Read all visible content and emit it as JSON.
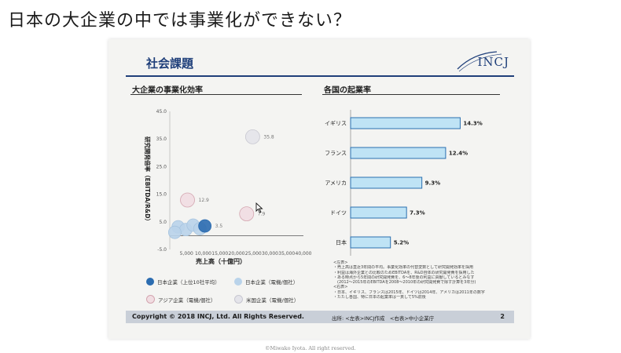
{
  "page": {
    "title": "日本の大企業の中では事業化ができない？",
    "watermark": "©Miwako Iyota. All right reserved."
  },
  "slide": {
    "header_title": "社会課題",
    "logo": "INCJ",
    "left_title": "大企業の事業化効率",
    "right_title": "各国の起業率",
    "footer_copyright": "Copyright © 2018 INCJ, Ltd. All Rights Reserved.",
    "footer_source": "出所: <左表>INCJ作成　<右表>中小企業庁",
    "page_number": "2",
    "legend": [
      {
        "label": "日本企業（上位10社平均）",
        "color": "#2b6cb0"
      },
      {
        "label": "日本企業（電機/個社）",
        "color": "#b9d3ea"
      },
      {
        "label": "アジア企業（電機/個社）",
        "color": "#e9c4cc"
      },
      {
        "label": "米国企業（電機/個社）",
        "color": "#d4d4dc"
      }
    ],
    "notes": [
      "<左表>",
      "・売上高は直近3年間の平均。事業化効率の代替変数として研究開発効率を採用",
      "・利益は海外企業との比較のためEBITDAを、R&D自体の研究開発費を採用した",
      "・ある時点から5年間の研究開発費を、6～8年後の利益に貢献しているとみなす",
      "　(2012～2015年のEBITDAを2008～2010年の研究開発費で除す計算を3年分)",
      "<右表>",
      "・日本、イギリス、フランスは2015年、ドイツは2014年、アメリカは2011年の数字",
      "・たたし各国、特に日本の起業率は一貫して5%前後"
    ]
  },
  "chart_data": [
    {
      "type": "scatter",
      "title": "大企業の事業化効率",
      "xlabel": "売上高（十億円）",
      "ylabel": "研究開発倍率（EBITDA/R&D）",
      "xlim": [
        0,
        40000
      ],
      "ylim": [
        -5,
        45
      ],
      "xticks": [
        "5,000",
        "10,000",
        "15,000",
        "20,000",
        "25,000",
        "30,000",
        "35,000",
        "40,000"
      ],
      "yticks": [
        "45.0",
        "35.0",
        "25.0",
        "15.0",
        "5.0",
        "-5.0"
      ],
      "grid": false,
      "points": [
        {
          "series": "日本企業（上位10社平均）",
          "x": 10500,
          "y": 3.5,
          "label": "3.5"
        },
        {
          "series": "米国企業（電機/個社）",
          "x": 24800,
          "y": 35.8,
          "label": "35.8"
        },
        {
          "series": "アジア企業（電機/個社）",
          "x": 5300,
          "y": 12.9,
          "label": "12.9"
        },
        {
          "series": "アジア企業（電機/個社）",
          "x": 23000,
          "y": 7.9,
          "label": "7.9"
        },
        {
          "series": "日本企業（電機/個社）",
          "x": 2500,
          "y": 3.2,
          "label": ""
        },
        {
          "series": "日本企業（電機/個社）",
          "x": 4800,
          "y": 2.2,
          "label": ""
        },
        {
          "series": "日本企業（電機/個社）",
          "x": 7000,
          "y": 3.8,
          "label": ""
        },
        {
          "series": "日本企業（電機/個社）",
          "x": 9000,
          "y": 2.5,
          "label": ""
        },
        {
          "series": "日本企業（電機/個社）",
          "x": 1500,
          "y": 1.2,
          "label": ""
        }
      ]
    },
    {
      "type": "bar",
      "title": "各国の起業率",
      "orientation": "horizontal",
      "categories": [
        "イギリス",
        "フランス",
        "アメリカ",
        "ドイツ",
        "日本"
      ],
      "values": [
        14.3,
        12.4,
        9.3,
        7.3,
        5.2
      ],
      "value_labels": [
        "14.3%",
        "12.4%",
        "9.3%",
        "7.3%",
        "5.2%"
      ],
      "xlim": [
        0,
        16
      ],
      "bar_color": "#bfe3f5",
      "bar_edge": "#2a6fb0"
    }
  ]
}
